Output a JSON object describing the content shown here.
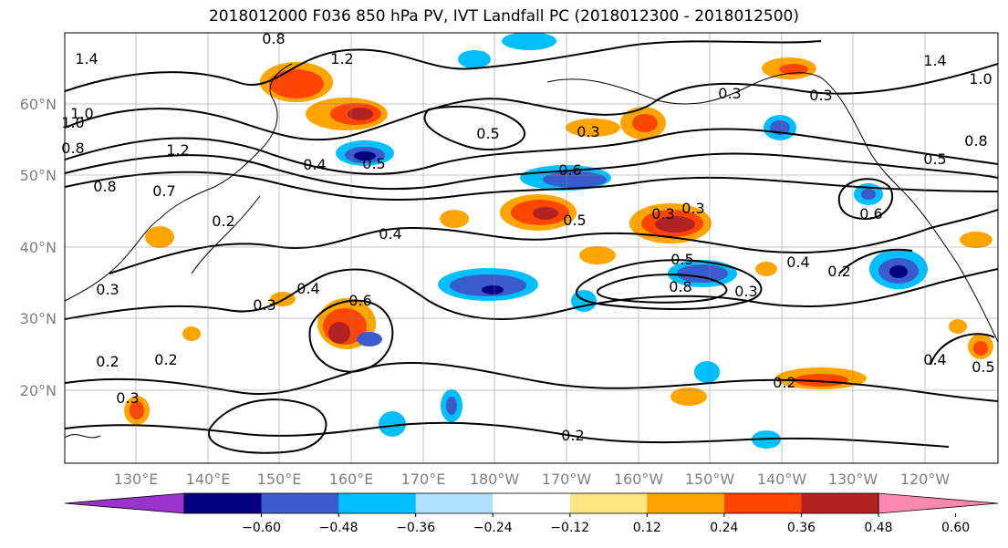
{
  "title": "2018012000 F036 850 hPa PV, IVT Landfall PC (2018012300 - 2018012500)",
  "map": {
    "lat_labels": [
      "60°N",
      "50°N",
      "40°N",
      "30°N",
      "20°N"
    ],
    "lon_labels": [
      "130°E",
      "140°E",
      "150°E",
      "160°E",
      "170°E",
      "180°W",
      "170°W",
      "160°W",
      "150°W",
      "140°W",
      "130°W",
      "120°W"
    ]
  },
  "contour_labels": [
    "0.8",
    "1.2",
    "1.4",
    "1.0",
    "1.2",
    "0.8",
    "0.7",
    "0.5",
    "0.3",
    "0.4",
    "0.6",
    "0.5",
    "0.3",
    "0.3",
    "0.2",
    "0.3",
    "0.4",
    "0.3",
    "0.5",
    "0.8",
    "0.3",
    "0.4",
    "0.2",
    "0.4",
    "0.6",
    "0.8",
    "0.5",
    "0.2",
    "0.2",
    "0.2",
    "0.3",
    "0.2",
    "0.4",
    "0.5",
    "1.4",
    "1.0",
    "1.0",
    "0.8",
    "0.5",
    "0.6",
    "0.3",
    "0.3"
  ],
  "colorbar": {
    "colors": [
      "#9933cc",
      "#000080",
      "#3a5bcc",
      "#00bfff",
      "#b0e2ff",
      "#ffffff",
      "#ffe680",
      "#ffa500",
      "#ff4500",
      "#b22222",
      "#ff88b0"
    ],
    "tick_labels": [
      "−0.60",
      "−0.48",
      "−0.36",
      "−0.24",
      "−0.12",
      "0.12",
      "0.24",
      "0.36",
      "0.48",
      "0.60"
    ]
  }
}
